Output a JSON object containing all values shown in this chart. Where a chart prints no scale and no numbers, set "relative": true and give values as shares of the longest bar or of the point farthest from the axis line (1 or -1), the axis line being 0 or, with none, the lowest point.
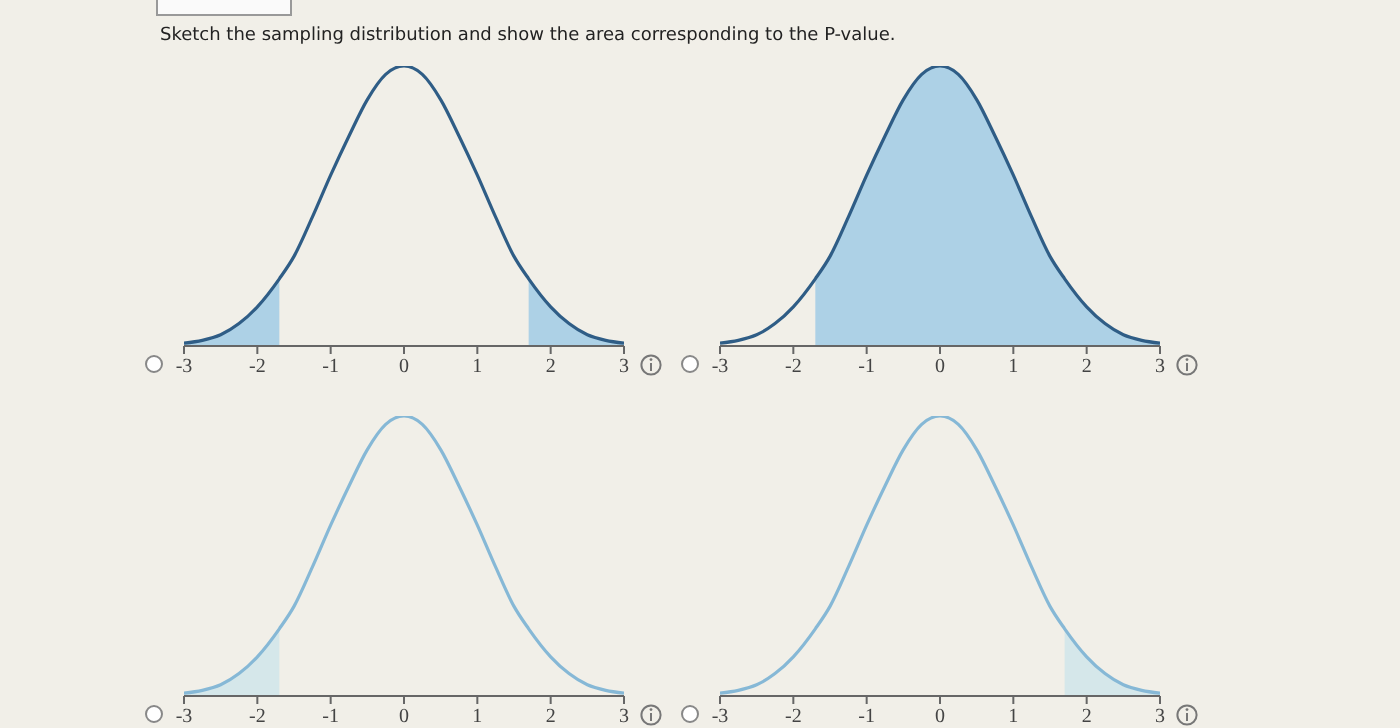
{
  "chart_data": [
    {
      "type": "line",
      "title": "Sketch the sampling distribution and show the area corresponding to the P-value.",
      "relative": true,
      "tick_labels": "x",
      "x": [
        -3,
        -2.75,
        -2.5,
        -2.25,
        -2,
        -1.7,
        -1.5,
        -1.25,
        -1,
        -0.75,
        -0.5,
        -0.25,
        0,
        0.25,
        0.5,
        0.75,
        1,
        1.25,
        1.5,
        1.7,
        2,
        2.25,
        2.5,
        2.75,
        3
      ],
      "xlim": [
        -3,
        3
      ],
      "xticks": [
        -3,
        -2,
        -1,
        0,
        1,
        2,
        3
      ],
      "series": [
        {
          "type": "area",
          "color": "#a9cfe6",
          "x": [
            -3,
            -2.75,
            -2.5,
            -2.25,
            -2,
            -1.7
          ],
          "values": [
            0.01,
            0.02,
            0.04,
            0.08,
            0.14,
            0.24
          ]
        },
        {
          "type": "area",
          "color": "#a9cfe6",
          "x": [
            1.7,
            2,
            2.25,
            2.5,
            2.75,
            3
          ],
          "values": [
            0.24,
            0.14,
            0.08,
            0.04,
            0.02,
            0.01
          ]
        },
        {
          "color": "#2f5d86",
          "values": [
            0.01,
            0.02,
            0.04,
            0.08,
            0.14,
            0.24,
            0.32,
            0.46,
            0.61,
            0.75,
            0.88,
            0.97,
            1,
            0.97,
            0.88,
            0.75,
            0.61,
            0.46,
            0.32,
            0.24,
            0.14,
            0.08,
            0.04,
            0.02,
            0.01
          ]
        }
      ]
    },
    {
      "type": "line",
      "relative": true,
      "tick_labels": "x",
      "x": [
        -3,
        -2.75,
        -2.5,
        -2.25,
        -2,
        -1.7,
        -1.5,
        -1.25,
        -1,
        -0.75,
        -0.5,
        -0.25,
        0,
        0.25,
        0.5,
        0.75,
        1,
        1.25,
        1.5,
        1.7,
        2,
        2.25,
        2.5,
        2.75,
        3
      ],
      "xlim": [
        -3,
        3
      ],
      "xticks": [
        -3,
        -2,
        -1,
        0,
        1,
        2,
        3
      ],
      "series": [
        {
          "type": "area",
          "color": "#a9cfe6",
          "x": [
            -1.7,
            -1.5,
            -1.25,
            -1,
            -0.75,
            -0.5,
            -0.25,
            0,
            0.25,
            0.5,
            0.75,
            1,
            1.25,
            1.5,
            1.7,
            2,
            2.25,
            2.5,
            2.75,
            3
          ],
          "values": [
            0.24,
            0.32,
            0.46,
            0.61,
            0.75,
            0.88,
            0.97,
            1,
            0.97,
            0.88,
            0.75,
            0.61,
            0.46,
            0.32,
            0.24,
            0.14,
            0.08,
            0.04,
            0.02,
            0.01
          ]
        },
        {
          "color": "#2f5d86",
          "values": [
            0.01,
            0.02,
            0.04,
            0.08,
            0.14,
            0.24,
            0.32,
            0.46,
            0.61,
            0.75,
            0.88,
            0.97,
            1,
            0.97,
            0.88,
            0.75,
            0.61,
            0.46,
            0.32,
            0.24,
            0.14,
            0.08,
            0.04,
            0.02,
            0.01
          ]
        }
      ]
    },
    {
      "type": "line",
      "relative": true,
      "tick_labels": "x",
      "x": [
        -3,
        -2.75,
        -2.5,
        -2.25,
        -2,
        -1.7,
        -1.5,
        -1.25,
        -1,
        -0.75,
        -0.5,
        -0.25,
        0,
        0.25,
        0.5,
        0.75,
        1,
        1.25,
        1.5,
        1.7,
        2,
        2.25,
        2.5,
        2.75,
        3
      ],
      "xlim": [
        -3,
        3
      ],
      "xticks": [
        -3,
        -2,
        -1,
        0,
        1,
        2,
        3
      ],
      "series": [
        {
          "type": "area",
          "color": "#d3e6ea",
          "x": [
            -3,
            -2.75,
            -2.5,
            -2.25,
            -2,
            -1.7
          ],
          "values": [
            0.01,
            0.02,
            0.04,
            0.08,
            0.14,
            0.24
          ]
        },
        {
          "color": "#86b8d6",
          "values": [
            0.01,
            0.02,
            0.04,
            0.08,
            0.14,
            0.24,
            0.32,
            0.46,
            0.61,
            0.75,
            0.88,
            0.97,
            1,
            0.97,
            0.88,
            0.75,
            0.61,
            0.46,
            0.32,
            0.24,
            0.14,
            0.08,
            0.04,
            0.02,
            0.01
          ]
        }
      ]
    },
    {
      "type": "line",
      "relative": true,
      "tick_labels": "x",
      "x": [
        -3,
        -2.75,
        -2.5,
        -2.25,
        -2,
        -1.7,
        -1.5,
        -1.25,
        -1,
        -0.75,
        -0.5,
        -0.25,
        0,
        0.25,
        0.5,
        0.75,
        1,
        1.25,
        1.5,
        1.7,
        2,
        2.25,
        2.5,
        2.75,
        3
      ],
      "xlim": [
        -3,
        3
      ],
      "xticks": [
        -3,
        -2,
        -1,
        0,
        1,
        2,
        3
      ],
      "series": [
        {
          "type": "area",
          "color": "#d3e6ea",
          "x": [
            1.7,
            2,
            2.25,
            2.5,
            2.75,
            3
          ],
          "values": [
            0.24,
            0.14,
            0.08,
            0.04,
            0.02,
            0.01
          ]
        },
        {
          "color": "#86b8d6",
          "values": [
            0.01,
            0.02,
            0.04,
            0.08,
            0.14,
            0.24,
            0.32,
            0.46,
            0.61,
            0.75,
            0.88,
            0.97,
            1,
            0.97,
            0.88,
            0.75,
            0.61,
            0.46,
            0.32,
            0.24,
            0.14,
            0.08,
            0.04,
            0.02,
            0.01
          ]
        }
      ]
    }
  ]
}
